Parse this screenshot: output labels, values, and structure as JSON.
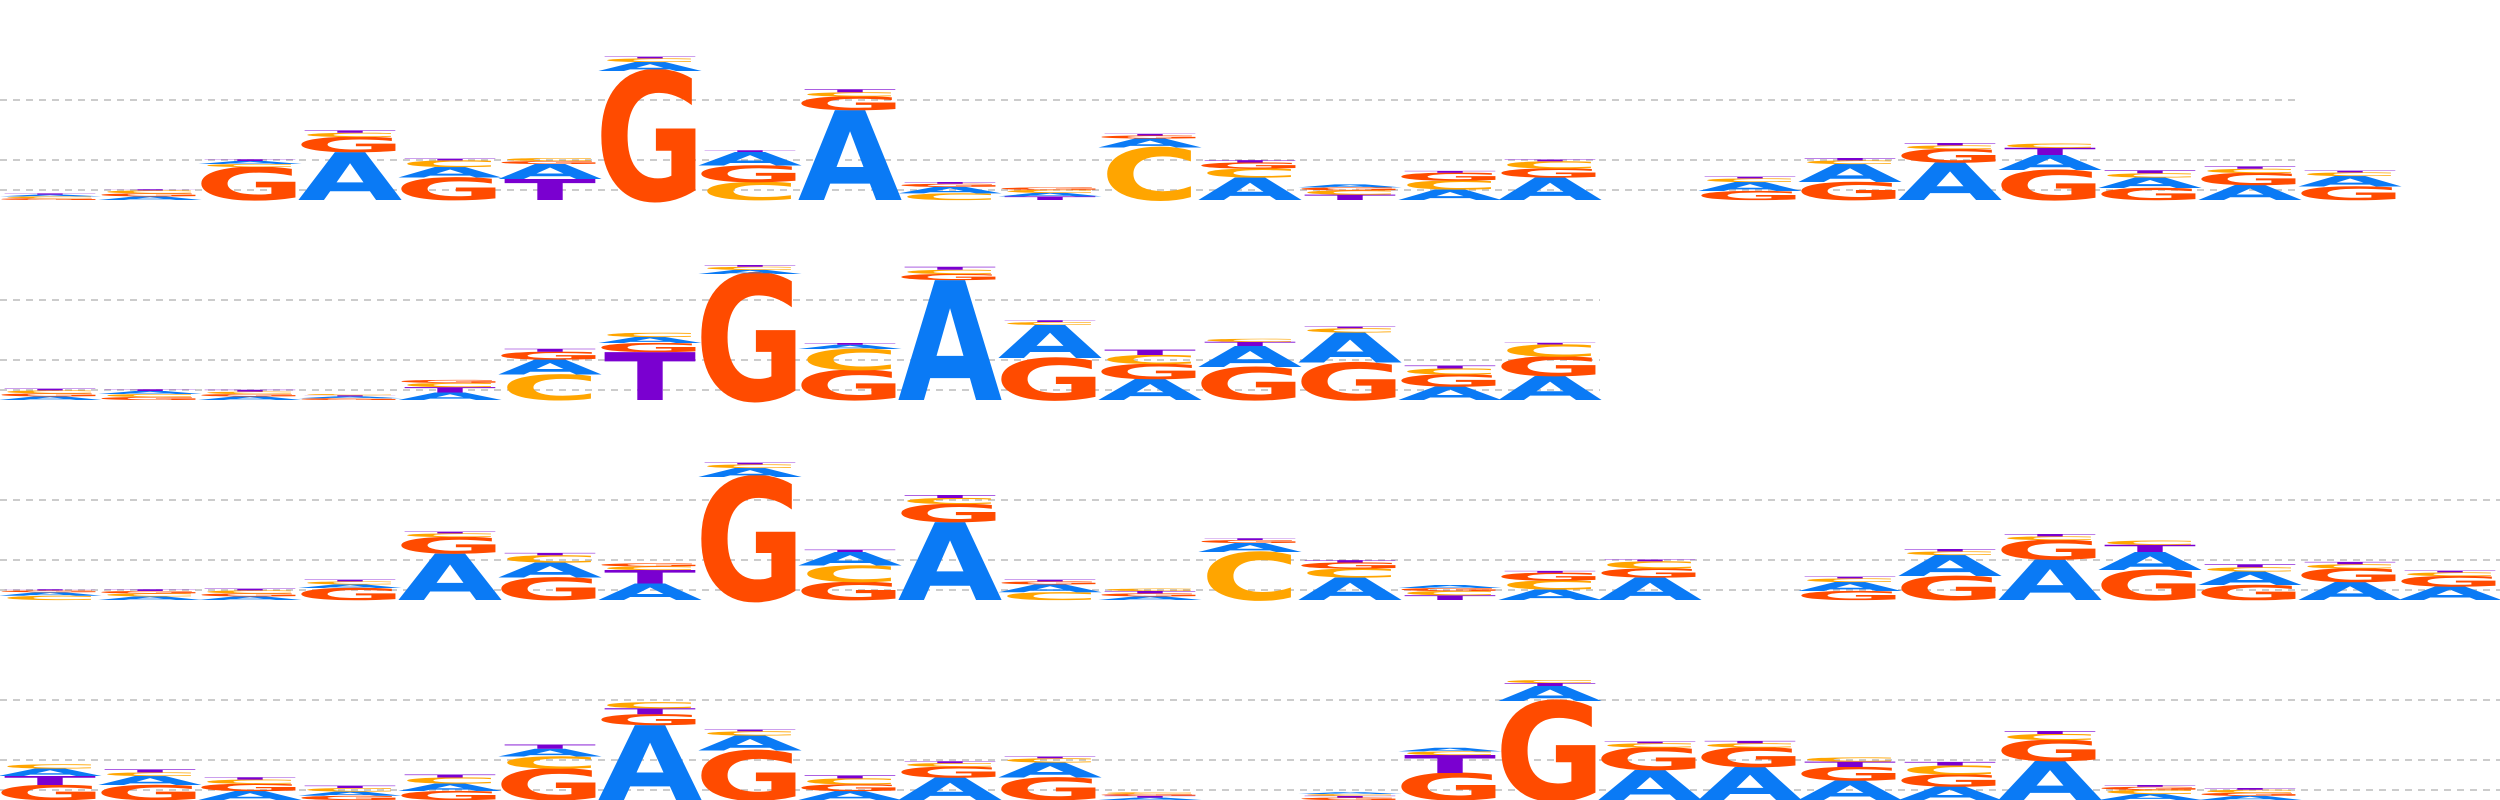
{
  "colors": {
    "A": "#0a7af5",
    "C": "#ffa500",
    "G": "#ff4b00",
    "T": "#7a00d0"
  },
  "bases": [
    "A",
    "C",
    "G",
    "T"
  ],
  "chart_data": [
    {
      "type": "sequence-logo",
      "columns": [
        {
          "A": 0.06,
          "C": 0.06,
          "G": 0.06,
          "T": 0.04
        },
        {
          "A": 0.12,
          "C": 0.1,
          "G": 0.1,
          "T": 0.04
        },
        {
          "A": 0.1,
          "C": 0.1,
          "G": 1.1,
          "T": 0.06
        },
        {
          "A": 1.6,
          "C": 0.14,
          "G": 0.5,
          "T": 0.08
        },
        {
          "A": 0.35,
          "C": 0.22,
          "G": 0.75,
          "T": 0.06
        },
        {
          "A": 0.5,
          "C": 0.1,
          "G": 0.1,
          "T": 0.7
        },
        {
          "A": 0.3,
          "C": 0.12,
          "G": 4.3,
          "T": 0.06
        },
        {
          "A": 0.45,
          "C": 0.6,
          "G": 0.55,
          "T": 0.06
        },
        {
          "A": 3.0,
          "C": 0.14,
          "G": 0.45,
          "T": 0.1
        },
        {
          "A": 0.22,
          "C": 0.22,
          "G": 0.1,
          "T": 0.06
        },
        {
          "A": 0.12,
          "C": 0.1,
          "G": 0.08,
          "T": 0.12
        },
        {
          "A": 0.3,
          "C": 1.75,
          "G": 0.1,
          "T": 0.06
        },
        {
          "A": 0.75,
          "C": 0.3,
          "G": 0.2,
          "T": 0.08
        },
        {
          "A": 0.1,
          "C": 0.14,
          "G": 0.1,
          "T": 0.18
        },
        {
          "A": 0.35,
          "C": 0.3,
          "G": 0.26,
          "T": 0.06
        },
        {
          "A": 0.75,
          "C": 0.24,
          "G": 0.3,
          "T": 0.06
        },
        null,
        {
          "A": 0.3,
          "C": 0.12,
          "G": 0.3,
          "T": 0.06
        },
        {
          "A": 0.6,
          "C": 0.12,
          "G": 0.6,
          "T": 0.08
        },
        {
          "A": 1.25,
          "C": 0.12,
          "G": 0.45,
          "T": 0.08
        },
        {
          "A": 0.5,
          "C": 0.14,
          "G": 1.0,
          "T": 0.24
        },
        {
          "A": 0.35,
          "C": 0.14,
          "G": 0.4,
          "T": 0.1
        },
        {
          "A": 0.5,
          "C": 0.14,
          "G": 0.4,
          "T": 0.08
        },
        {
          "A": 0.35,
          "C": 0.12,
          "G": 0.45,
          "T": 0.06
        }
      ]
    },
    {
      "type": "sequence-logo",
      "columns": [
        {
          "A": 0.12,
          "C": 0.1,
          "G": 0.1,
          "T": 0.06
        },
        {
          "A": 0.1,
          "C": 0.1,
          "G": 0.1,
          "T": 0.06
        },
        {
          "A": 0.12,
          "C": 0.08,
          "G": 0.08,
          "T": 0.06
        },
        {
          "A": 0.06,
          "C": 0.04,
          "G": 0.06,
          "T": 0.04
        },
        {
          "A": 0.25,
          "C": 0.14,
          "G": 0.1,
          "T": 0.18
        },
        {
          "A": 0.5,
          "C": 0.85,
          "G": 0.26,
          "T": 0.1
        },
        {
          "A": 0.2,
          "C": 0.14,
          "G": 0.3,
          "T": 1.6
        },
        {
          "A": 0.14,
          "C": 0.1,
          "G": 4.2,
          "T": 0.06
        },
        {
          "A": 0.14,
          "C": 0.7,
          "G": 1.0,
          "T": 0.06
        },
        {
          "A": 4.0,
          "C": 0.14,
          "G": 0.2,
          "T": 0.1
        },
        {
          "A": 1.1,
          "C": 0.1,
          "G": 1.4,
          "T": 0.06
        },
        {
          "A": 0.7,
          "C": 0.3,
          "G": 0.5,
          "T": 0.18
        },
        {
          "A": 0.7,
          "C": 0.1,
          "G": 1.1,
          "T": 0.14
        },
        {
          "A": 1.0,
          "C": 0.14,
          "G": 1.25,
          "T": 0.06
        },
        {
          "A": 0.45,
          "C": 0.2,
          "G": 0.4,
          "T": 0.1
        },
        {
          "A": 0.8,
          "C": 0.4,
          "G": 0.65,
          "T": 0.06
        }
      ]
    },
    {
      "type": "sequence-logo",
      "columns": [
        {
          "A": 0.12,
          "C": 0.14,
          "G": 0.06,
          "T": 0.04
        },
        {
          "A": 0.12,
          "C": 0.1,
          "G": 0.08,
          "T": 0.06
        },
        {
          "A": 0.12,
          "C": 0.1,
          "G": 0.1,
          "T": 0.06
        },
        {
          "A": 0.12,
          "C": 0.1,
          "G": 0.4,
          "T": 0.06
        },
        {
          "A": 1.55,
          "C": 0.12,
          "G": 0.55,
          "T": 0.06
        },
        {
          "A": 0.5,
          "C": 0.24,
          "G": 0.75,
          "T": 0.08
        },
        {
          "A": 0.55,
          "C": 0.12,
          "G": 0.1,
          "T": 0.45
        },
        {
          "A": 0.3,
          "C": 0.12,
          "G": 4.1,
          "T": 0.06
        },
        {
          "A": 0.45,
          "C": 0.55,
          "G": 0.6,
          "T": 0.08
        },
        {
          "A": 2.6,
          "C": 0.2,
          "G": 0.6,
          "T": 0.1
        },
        {
          "A": 0.26,
          "C": 0.26,
          "G": 0.1,
          "T": 0.06
        },
        {
          "A": 0.12,
          "C": 0.08,
          "G": 0.1,
          "T": 0.08
        },
        {
          "A": 0.3,
          "C": 1.6,
          "G": 0.1,
          "T": 0.06
        },
        {
          "A": 0.75,
          "C": 0.3,
          "G": 0.2,
          "T": 0.08
        },
        {
          "A": 0.1,
          "C": 0.14,
          "G": 0.1,
          "T": 0.16
        },
        {
          "A": 0.35,
          "C": 0.3,
          "G": 0.26,
          "T": 0.06
        },
        {
          "A": 0.75,
          "C": 0.24,
          "G": 0.3,
          "T": 0.06
        },
        null,
        {
          "A": 0.3,
          "C": 0.12,
          "G": 0.3,
          "T": 0.06
        },
        {
          "A": 0.7,
          "C": 0.12,
          "G": 0.8,
          "T": 0.08
        },
        {
          "A": 1.35,
          "C": 0.12,
          "G": 0.65,
          "T": 0.08
        },
        {
          "A": 0.6,
          "C": 0.14,
          "G": 1.0,
          "T": 0.24
        },
        {
          "A": 0.45,
          "C": 0.14,
          "G": 0.5,
          "T": 0.1
        },
        {
          "A": 0.6,
          "C": 0.14,
          "G": 0.45,
          "T": 0.08
        },
        {
          "A": 0.45,
          "C": 0.12,
          "G": 0.35,
          "T": 0.06
        }
      ]
    },
    {
      "type": "sequence-logo",
      "columns": [
        {
          "A": 0.25,
          "C": 0.14,
          "G": 0.5,
          "T": 0.3
        },
        {
          "A": 0.3,
          "C": 0.12,
          "G": 0.5,
          "T": 0.1
        },
        {
          "A": 0.3,
          "C": 0.14,
          "G": 0.24,
          "T": 0.08
        },
        {
          "A": 0.14,
          "C": 0.12,
          "G": 0.14,
          "T": 0.08
        },
        {
          "A": 0.25,
          "C": 0.2,
          "G": 0.3,
          "T": 0.1
        },
        {
          "A": 0.26,
          "C": 0.4,
          "G": 1.05,
          "T": 0.14
        },
        {
          "A": 2.5,
          "C": 0.2,
          "G": 0.36,
          "T": 0.2
        },
        {
          "A": 0.5,
          "C": 0.14,
          "G": 1.65,
          "T": 0.06
        },
        {
          "A": 0.3,
          "C": 0.2,
          "G": 0.22,
          "T": 0.1
        },
        {
          "A": 0.75,
          "C": 0.12,
          "G": 0.36,
          "T": 0.06
        },
        {
          "A": 0.5,
          "C": 0.14,
          "G": 0.75,
          "T": 0.06
        },
        {
          "A": 0.08,
          "C": 0.06,
          "G": 0.06,
          "T": 0.06
        },
        null,
        {
          "A": 0.06,
          "C": 0.06,
          "G": 0.08,
          "T": 0.06
        },
        {
          "A": 0.12,
          "C": 0.12,
          "G": 0.9,
          "T": 0.6
        },
        {
          "A": 0.5,
          "C": 0.1,
          "G": 3.3,
          "T": 0.1
        },
        {
          "A": 1.0,
          "C": 0.14,
          "G": 0.75,
          "T": 0.06
        },
        {
          "A": 1.1,
          "C": 0.14,
          "G": 0.65,
          "T": 0.08
        },
        {
          "A": 0.65,
          "C": 0.14,
          "G": 0.45,
          "T": 0.18
        },
        {
          "A": 0.45,
          "C": 0.3,
          "G": 0.4,
          "T": 0.12
        },
        {
          "A": 1.3,
          "C": 0.2,
          "G": 0.7,
          "T": 0.1
        },
        {
          "A": 0.2,
          "C": 0.14,
          "G": 0.1,
          "T": 0.06
        },
        {
          "A": 0.14,
          "C": 0.1,
          "G": 0.1,
          "T": 0.06
        }
      ]
    }
  ]
}
